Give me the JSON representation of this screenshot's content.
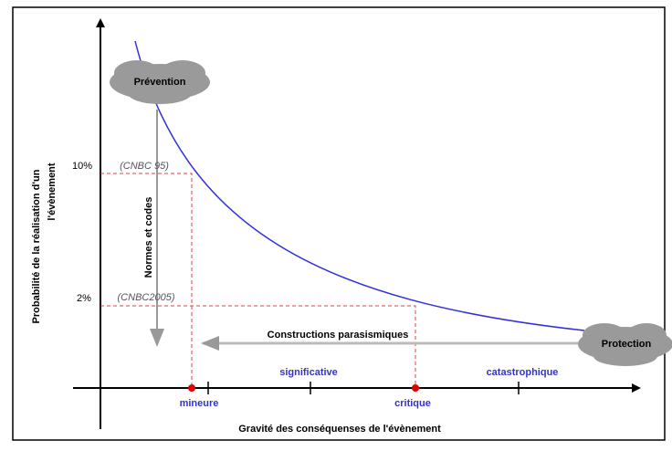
{
  "clouds": {
    "prevention": "Prévention",
    "protection": "Protection"
  },
  "levels": [
    {
      "percent": "10%",
      "code": "(CNBC 95)"
    },
    {
      "percent": "2%",
      "code": "(CNBC2005)"
    }
  ],
  "arrows": {
    "vertical": "Normes et codes",
    "horizontal": "Constructions parasismiques"
  },
  "severity": {
    "points": [
      "mineure",
      "critique"
    ],
    "zones": [
      "significative",
      "catastrophique"
    ]
  },
  "axes": {
    "y_label": [
      "Probabilité de la réalisation d'un",
      "l'évènement"
    ],
    "x_label": "Gravité des conséquenses de l'évènement"
  }
}
